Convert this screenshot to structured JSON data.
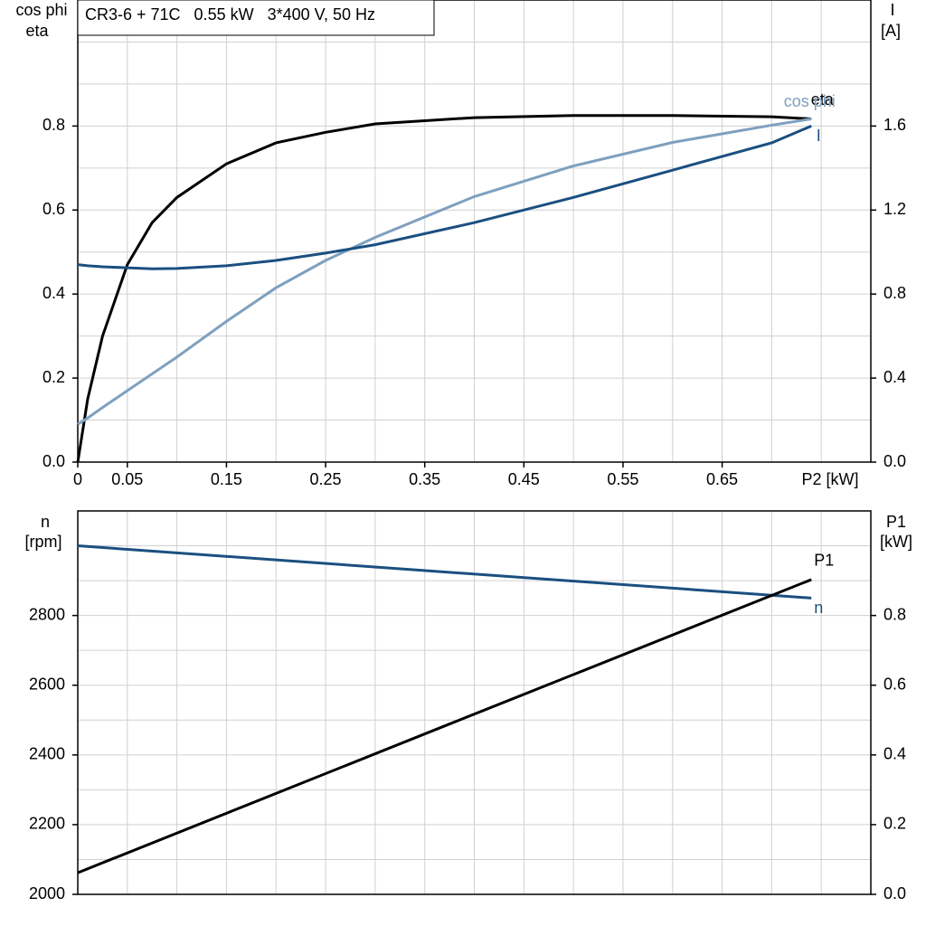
{
  "chart_data": [
    {
      "type": "line",
      "title": "CR3-6 + 71C   0.55 kW   3*400 V, 50 Hz",
      "ylabel": [
        "cos phi",
        "eta"
      ],
      "y2label": [
        "I",
        "[A]"
      ],
      "xlabel": "P2 [kW]",
      "x": [
        0,
        0.01,
        0.025,
        0.05,
        0.075,
        0.1,
        0.15,
        0.2,
        0.25,
        0.3,
        0.4,
        0.5,
        0.6,
        0.7,
        0.74
      ],
      "series": [
        {
          "name": "eta",
          "color": "#000000",
          "values": [
            0,
            0.15,
            0.3,
            0.47,
            0.57,
            0.63,
            0.71,
            0.76,
            0.785,
            0.805,
            0.82,
            0.825,
            0.825,
            0.822,
            0.817
          ]
        },
        {
          "name": "cos phi",
          "color": "#7ea0bf",
          "values": [
            0.09,
            0.105,
            0.13,
            0.17,
            0.21,
            0.25,
            0.335,
            0.415,
            0.48,
            0.535,
            0.632,
            0.705,
            0.761,
            0.802,
            0.817
          ]
        },
        {
          "name": "I",
          "color": "#1b4f80",
          "axis": "y2",
          "values": [
            0.94,
            0.935,
            0.93,
            0.925,
            0.92,
            0.922,
            0.935,
            0.96,
            0.995,
            1.035,
            1.14,
            1.26,
            1.39,
            1.52,
            1.6
          ]
        }
      ],
      "xlim": [
        0,
        0.8
      ],
      "xticks": [
        0,
        0.05,
        0.15,
        0.25,
        0.35,
        0.45,
        0.55,
        0.65
      ],
      "xgrid": [
        0.05,
        0.1,
        0.15,
        0.2,
        0.25,
        0.3,
        0.35,
        0.4,
        0.45,
        0.5,
        0.55,
        0.6,
        0.65,
        0.7,
        0.75
      ],
      "ylim": [
        0,
        1.1
      ],
      "yticks": [
        {
          "value": 0,
          "label": "0.0"
        },
        0.2,
        0.4,
        0.6,
        0.8
      ],
      "ygrid": [
        0.1,
        0.2,
        0.3,
        0.4,
        0.5,
        0.6,
        0.7,
        0.8,
        0.9,
        1.0
      ],
      "y2lim": [
        0,
        2.2
      ],
      "y2ticks": [
        {
          "value": 0,
          "label": "0.0"
        },
        0.4,
        0.8,
        1.2,
        1.6
      ]
    },
    {
      "type": "line",
      "ylabel": [
        "n",
        "[rpm]"
      ],
      "y2label": [
        "P1",
        "[kW]"
      ],
      "x": [
        0,
        0.37,
        0.74
      ],
      "series": [
        {
          "name": "n",
          "color": "#1b4f80",
          "values": [
            3000,
            2925,
            2850
          ]
        },
        {
          "name": "P1",
          "color": "#000000",
          "axis": "y2",
          "values": [
            0.062,
            0.483,
            0.903
          ]
        }
      ],
      "xlim": [
        0,
        0.8
      ],
      "xgrid": [
        0.05,
        0.1,
        0.15,
        0.2,
        0.25,
        0.3,
        0.35,
        0.4,
        0.45,
        0.5,
        0.55,
        0.6,
        0.65,
        0.7,
        0.75
      ],
      "ylim": [
        2000,
        3100
      ],
      "yticks": [
        2000,
        2200,
        2400,
        2600,
        2800
      ],
      "ygrid": [
        2100,
        2200,
        2300,
        2400,
        2500,
        2600,
        2700,
        2800,
        2900,
        3000
      ],
      "y2lim": [
        0,
        1.1
      ],
      "y2ticks": [
        {
          "value": 0,
          "label": "0.0"
        },
        0.2,
        0.4,
        0.6,
        0.8
      ]
    }
  ]
}
